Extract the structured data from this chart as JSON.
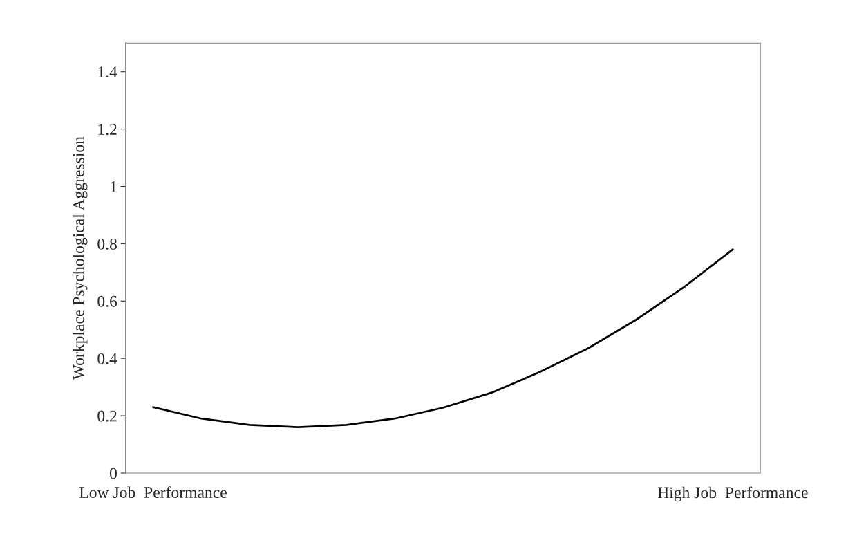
{
  "chart_data": {
    "type": "line",
    "ylabel": "Workplace Psychological Aggression",
    "categories": [
      "Low Job  Performance",
      null,
      null,
      null,
      null,
      null,
      null,
      null,
      null,
      null,
      null,
      null,
      "High Job  Performance"
    ],
    "series": [
      {
        "color": "#000000",
        "values": [
          0.23,
          0.19,
          0.168,
          0.16,
          0.168,
          0.19,
          0.228,
          0.28,
          0.352,
          0.435,
          0.535,
          0.65,
          0.78
        ]
      }
    ],
    "ylim": [
      0,
      1.5
    ],
    "yticks": [
      0,
      0.2,
      0.4,
      0.6,
      0.8,
      1,
      1.2,
      1.4
    ],
    "grid": false,
    "marker": "none",
    "line_style": "solid"
  }
}
